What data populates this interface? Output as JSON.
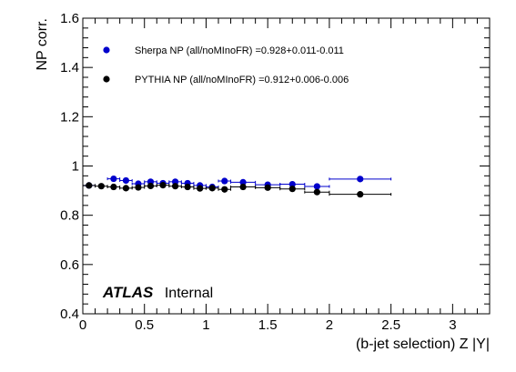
{
  "chart_data": {
    "type": "scatter",
    "title": "",
    "xlabel": "(b-jet selection) Z |Y|",
    "ylabel": "NP corr.",
    "xlim": [
      0,
      3.3
    ],
    "ylim": [
      0.4,
      1.6
    ],
    "x_tick_labels": [
      "0",
      "0.5",
      "1",
      "1.5",
      "2",
      "2.5",
      "3"
    ],
    "y_tick_labels": [
      "0.4",
      "0.6",
      "0.8",
      "1",
      "1.2",
      "1.4",
      "1.6"
    ],
    "grid": false,
    "legend_position": "top-left",
    "series": [
      {
        "name": "Sherpa NP (all/noMInoFR) =0.928+0.011-0.011",
        "color": "#0000cc",
        "marker": "circle",
        "points": [
          {
            "x": 0.05,
            "xerr": 0.05,
            "y": 0.921,
            "yerr": 0.006
          },
          {
            "x": 0.25,
            "xerr": 0.05,
            "y": 0.948,
            "yerr": 0.006
          },
          {
            "x": 0.35,
            "xerr": 0.05,
            "y": 0.941,
            "yerr": 0.006
          },
          {
            "x": 0.45,
            "xerr": 0.05,
            "y": 0.928,
            "yerr": 0.006
          },
          {
            "x": 0.55,
            "xerr": 0.05,
            "y": 0.936,
            "yerr": 0.006
          },
          {
            "x": 0.65,
            "xerr": 0.05,
            "y": 0.93,
            "yerr": 0.006
          },
          {
            "x": 0.75,
            "xerr": 0.05,
            "y": 0.936,
            "yerr": 0.006
          },
          {
            "x": 0.85,
            "xerr": 0.05,
            "y": 0.93,
            "yerr": 0.006
          },
          {
            "x": 0.95,
            "xerr": 0.05,
            "y": 0.921,
            "yerr": 0.006
          },
          {
            "x": 1.05,
            "xerr": 0.05,
            "y": 0.915,
            "yerr": 0.006
          },
          {
            "x": 1.15,
            "xerr": 0.05,
            "y": 0.939,
            "yerr": 0.006
          },
          {
            "x": 1.3,
            "xerr": 0.1,
            "y": 0.934,
            "yerr": 0.006
          },
          {
            "x": 1.5,
            "xerr": 0.1,
            "y": 0.924,
            "yerr": 0.006
          },
          {
            "x": 1.7,
            "xerr": 0.1,
            "y": 0.926,
            "yerr": 0.006
          },
          {
            "x": 1.9,
            "xerr": 0.1,
            "y": 0.917,
            "yerr": 0.008
          },
          {
            "x": 2.25,
            "xerr": 0.25,
            "y": 0.947,
            "yerr": 0.012
          }
        ]
      },
      {
        "name": "PYTHIA NP (all/noMInoFR) =0.912+0.006-0.006",
        "color": "#000000",
        "marker": "circle",
        "points": [
          {
            "x": 0.05,
            "xerr": 0.05,
            "y": 0.921,
            "yerr": 0.004
          },
          {
            "x": 0.15,
            "xerr": 0.05,
            "y": 0.918,
            "yerr": 0.004
          },
          {
            "x": 0.25,
            "xerr": 0.05,
            "y": 0.915,
            "yerr": 0.004
          },
          {
            "x": 0.35,
            "xerr": 0.05,
            "y": 0.91,
            "yerr": 0.004
          },
          {
            "x": 0.45,
            "xerr": 0.05,
            "y": 0.913,
            "yerr": 0.004
          },
          {
            "x": 0.55,
            "xerr": 0.05,
            "y": 0.919,
            "yerr": 0.004
          },
          {
            "x": 0.65,
            "xerr": 0.05,
            "y": 0.922,
            "yerr": 0.004
          },
          {
            "x": 0.75,
            "xerr": 0.05,
            "y": 0.918,
            "yerr": 0.004
          },
          {
            "x": 0.85,
            "xerr": 0.05,
            "y": 0.915,
            "yerr": 0.004
          },
          {
            "x": 0.95,
            "xerr": 0.05,
            "y": 0.909,
            "yerr": 0.004
          },
          {
            "x": 1.05,
            "xerr": 0.05,
            "y": 0.91,
            "yerr": 0.004
          },
          {
            "x": 1.15,
            "xerr": 0.05,
            "y": 0.905,
            "yerr": 0.004
          },
          {
            "x": 1.3,
            "xerr": 0.1,
            "y": 0.915,
            "yerr": 0.004
          },
          {
            "x": 1.5,
            "xerr": 0.1,
            "y": 0.912,
            "yerr": 0.004
          },
          {
            "x": 1.7,
            "xerr": 0.1,
            "y": 0.907,
            "yerr": 0.004
          },
          {
            "x": 1.9,
            "xerr": 0.1,
            "y": 0.894,
            "yerr": 0.005
          },
          {
            "x": 2.25,
            "xerr": 0.25,
            "y": 0.885,
            "yerr": 0.006
          }
        ]
      }
    ],
    "annotation": {
      "experiment": "ATLAS",
      "status": "Internal"
    }
  }
}
